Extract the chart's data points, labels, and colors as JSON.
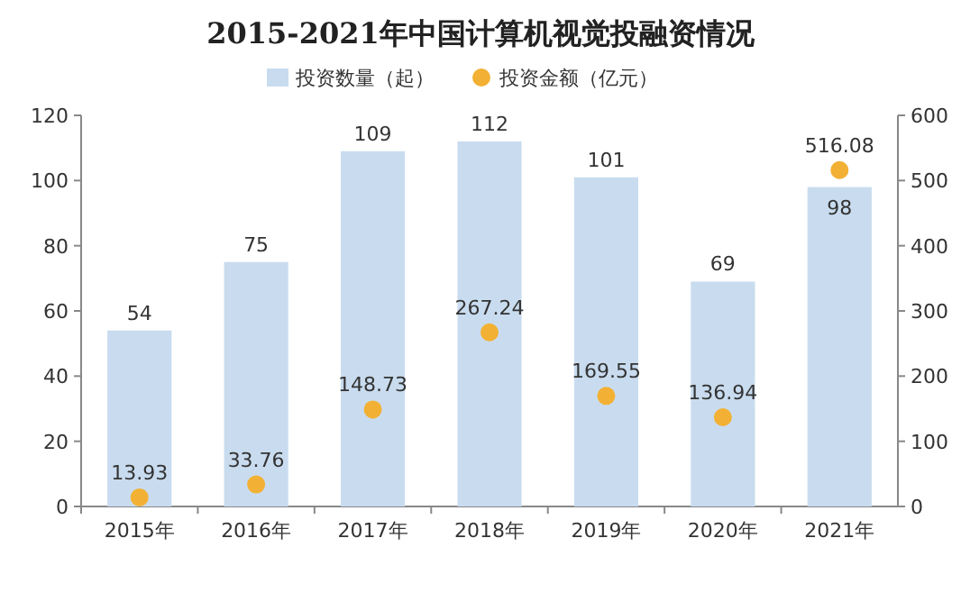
{
  "chart_data": {
    "type": "bar",
    "title": "2015-2021年中国计算机视觉投融资情况",
    "categories": [
      "2015年",
      "2016年",
      "2017年",
      "2018年",
      "2019年",
      "2020年",
      "2021年"
    ],
    "series": [
      {
        "name": "投资数量（起）",
        "color": "#c9dcef",
        "values": [
          54,
          75,
          109,
          112,
          101,
          69,
          98
        ]
      },
      {
        "name": "投资金额（亿元）",
        "type": "scatter",
        "axis": "y2",
        "marker": "circle",
        "color": "#f2b134",
        "values": [
          13.93,
          33.76,
          148.73,
          267.24,
          169.55,
          136.94,
          516.08
        ]
      }
    ],
    "ylim": [
      0,
      120
    ],
    "yticks": [
      0,
      20,
      40,
      60,
      80,
      100,
      120
    ],
    "y2lim": [
      0,
      600
    ],
    "y2ticks": [
      0,
      100,
      200,
      300,
      400,
      500,
      600
    ],
    "data_labels": true,
    "legend": "top",
    "grid": false
  }
}
